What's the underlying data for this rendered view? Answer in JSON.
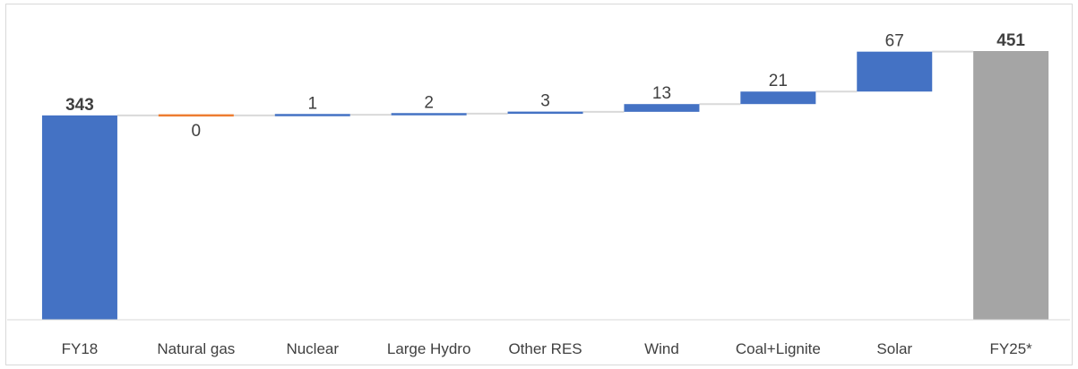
{
  "chart_data": {
    "type": "waterfall",
    "categories": [
      "FY18",
      "Natural gas",
      "Nuclear",
      "Large Hydro",
      "Other RES",
      "Wind",
      "Coal+Lignite",
      "Solar",
      "FY25*"
    ],
    "values": [
      343,
      0,
      1,
      2,
      3,
      13,
      21,
      67,
      451
    ],
    "kinds": [
      "total",
      "delta",
      "delta",
      "delta",
      "delta",
      "delta",
      "delta",
      "delta",
      "total"
    ],
    "value_labels": [
      "343",
      "0",
      "1",
      "2",
      "3",
      "13",
      "21",
      "67",
      "451"
    ],
    "colors": {
      "total_start": "#4472c4",
      "increase": "#4472c4",
      "zero": "#ed7d31",
      "total_end": "#a5a5a5",
      "connector": "#d9d9d9",
      "axis": "#d9d9d9",
      "text": "#404040"
    },
    "ylim": [
      0,
      451
    ],
    "grid": false,
    "legend": "none"
  }
}
